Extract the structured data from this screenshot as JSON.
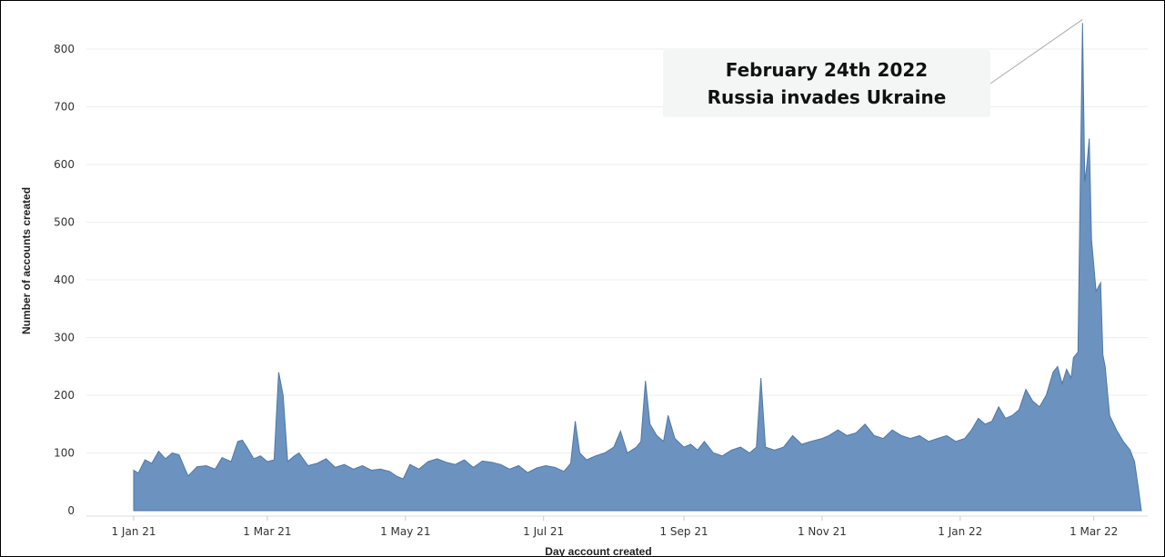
{
  "chart_data": {
    "type": "area",
    "title": "",
    "xlabel": "Day account created",
    "ylabel": "Number of accounts created",
    "x_range": [
      "2021-01-01",
      "2022-03-22"
    ],
    "ylim": [
      0,
      850
    ],
    "y_ticks": [
      0,
      100,
      200,
      300,
      400,
      500,
      600,
      700,
      800
    ],
    "x_ticks": [
      {
        "date": "2021-01-01",
        "label": "1 Jan 21"
      },
      {
        "date": "2021-03-01",
        "label": "1 Mar 21"
      },
      {
        "date": "2021-05-01",
        "label": "1 May 21"
      },
      {
        "date": "2021-07-01",
        "label": "1 Jul 21"
      },
      {
        "date": "2021-09-01",
        "label": "1 Sep 21"
      },
      {
        "date": "2021-11-01",
        "label": "1 Nov 21"
      },
      {
        "date": "2022-01-01",
        "label": "1 Jan 22"
      },
      {
        "date": "2022-03-01",
        "label": "1 Mar 22"
      }
    ],
    "grid": "horizontal",
    "color": "#6c93bf",
    "annotation": {
      "line1": "February 24th 2022",
      "line2": "Russia invades Ukraine",
      "date": "2022-02-24",
      "value": 845
    },
    "series": [
      {
        "points": [
          [
            "2021-01-01",
            70
          ],
          [
            "2021-01-03",
            65
          ],
          [
            "2021-01-06",
            88
          ],
          [
            "2021-01-09",
            82
          ],
          [
            "2021-01-12",
            103
          ],
          [
            "2021-01-15",
            90
          ],
          [
            "2021-01-18",
            100
          ],
          [
            "2021-01-21",
            97
          ],
          [
            "2021-01-25",
            60
          ],
          [
            "2021-01-29",
            76
          ],
          [
            "2021-02-02",
            78
          ],
          [
            "2021-02-06",
            72
          ],
          [
            "2021-02-09",
            92
          ],
          [
            "2021-02-13",
            85
          ],
          [
            "2021-02-16",
            120
          ],
          [
            "2021-02-18",
            122
          ],
          [
            "2021-02-20",
            110
          ],
          [
            "2021-02-23",
            90
          ],
          [
            "2021-02-26",
            95
          ],
          [
            "2021-03-01",
            85
          ],
          [
            "2021-03-04",
            88
          ],
          [
            "2021-03-06",
            240
          ],
          [
            "2021-03-08",
            200
          ],
          [
            "2021-03-10",
            85
          ],
          [
            "2021-03-13",
            95
          ],
          [
            "2021-03-15",
            100
          ],
          [
            "2021-03-19",
            78
          ],
          [
            "2021-03-23",
            82
          ],
          [
            "2021-03-27",
            90
          ],
          [
            "2021-03-31",
            75
          ],
          [
            "2021-04-04",
            80
          ],
          [
            "2021-04-08",
            72
          ],
          [
            "2021-04-12",
            78
          ],
          [
            "2021-04-16",
            70
          ],
          [
            "2021-04-20",
            72
          ],
          [
            "2021-04-24",
            68
          ],
          [
            "2021-04-27",
            60
          ],
          [
            "2021-04-30",
            55
          ],
          [
            "2021-05-03",
            80
          ],
          [
            "2021-05-07",
            72
          ],
          [
            "2021-05-11",
            85
          ],
          [
            "2021-05-15",
            90
          ],
          [
            "2021-05-19",
            84
          ],
          [
            "2021-05-23",
            80
          ],
          [
            "2021-05-27",
            88
          ],
          [
            "2021-05-31",
            75
          ],
          [
            "2021-06-04",
            86
          ],
          [
            "2021-06-08",
            84
          ],
          [
            "2021-06-12",
            80
          ],
          [
            "2021-06-16",
            72
          ],
          [
            "2021-06-20",
            78
          ],
          [
            "2021-06-24",
            66
          ],
          [
            "2021-06-28",
            74
          ],
          [
            "2021-07-02",
            78
          ],
          [
            "2021-07-06",
            75
          ],
          [
            "2021-07-10",
            68
          ],
          [
            "2021-07-13",
            82
          ],
          [
            "2021-07-15",
            155
          ],
          [
            "2021-07-17",
            100
          ],
          [
            "2021-07-20",
            88
          ],
          [
            "2021-07-24",
            95
          ],
          [
            "2021-07-28",
            100
          ],
          [
            "2021-08-01",
            110
          ],
          [
            "2021-08-04",
            138
          ],
          [
            "2021-08-07",
            100
          ],
          [
            "2021-08-11",
            110
          ],
          [
            "2021-08-13",
            120
          ],
          [
            "2021-08-15",
            225
          ],
          [
            "2021-08-17",
            150
          ],
          [
            "2021-08-20",
            130
          ],
          [
            "2021-08-23",
            120
          ],
          [
            "2021-08-25",
            165
          ],
          [
            "2021-08-28",
            125
          ],
          [
            "2021-09-01",
            110
          ],
          [
            "2021-09-04",
            115
          ],
          [
            "2021-09-07",
            105
          ],
          [
            "2021-09-10",
            120
          ],
          [
            "2021-09-14",
            100
          ],
          [
            "2021-09-18",
            95
          ],
          [
            "2021-09-22",
            105
          ],
          [
            "2021-09-26",
            110
          ],
          [
            "2021-09-30",
            100
          ],
          [
            "2021-10-03",
            110
          ],
          [
            "2021-10-05",
            230
          ],
          [
            "2021-10-07",
            110
          ],
          [
            "2021-10-11",
            105
          ],
          [
            "2021-10-15",
            110
          ],
          [
            "2021-10-19",
            130
          ],
          [
            "2021-10-23",
            115
          ],
          [
            "2021-10-27",
            120
          ],
          [
            "2021-11-01",
            125
          ],
          [
            "2021-11-04",
            130
          ],
          [
            "2021-11-08",
            140
          ],
          [
            "2021-11-12",
            130
          ],
          [
            "2021-11-16",
            135
          ],
          [
            "2021-11-20",
            150
          ],
          [
            "2021-11-24",
            130
          ],
          [
            "2021-11-28",
            125
          ],
          [
            "2021-12-02",
            140
          ],
          [
            "2021-12-06",
            130
          ],
          [
            "2021-12-10",
            125
          ],
          [
            "2021-12-14",
            130
          ],
          [
            "2021-12-18",
            120
          ],
          [
            "2021-12-22",
            125
          ],
          [
            "2021-12-26",
            130
          ],
          [
            "2021-12-30",
            120
          ],
          [
            "2022-01-03",
            125
          ],
          [
            "2022-01-06",
            140
          ],
          [
            "2022-01-09",
            160
          ],
          [
            "2022-01-12",
            150
          ],
          [
            "2022-01-15",
            155
          ],
          [
            "2022-01-18",
            180
          ],
          [
            "2022-01-21",
            160
          ],
          [
            "2022-01-24",
            165
          ],
          [
            "2022-01-27",
            175
          ],
          [
            "2022-01-30",
            210
          ],
          [
            "2022-02-02",
            190
          ],
          [
            "2022-02-05",
            180
          ],
          [
            "2022-02-08",
            200
          ],
          [
            "2022-02-11",
            240
          ],
          [
            "2022-02-13",
            250
          ],
          [
            "2022-02-15",
            220
          ],
          [
            "2022-02-17",
            245
          ],
          [
            "2022-02-19",
            230
          ],
          [
            "2022-02-20",
            265
          ],
          [
            "2022-02-22",
            275
          ],
          [
            "2022-02-24",
            845
          ],
          [
            "2022-02-25",
            570
          ],
          [
            "2022-02-26",
            600
          ],
          [
            "2022-02-27",
            645
          ],
          [
            "2022-02-28",
            470
          ],
          [
            "2022-03-02",
            380
          ],
          [
            "2022-03-04",
            395
          ],
          [
            "2022-03-05",
            270
          ],
          [
            "2022-03-06",
            250
          ],
          [
            "2022-03-08",
            165
          ],
          [
            "2022-03-11",
            140
          ],
          [
            "2022-03-14",
            120
          ],
          [
            "2022-03-17",
            105
          ],
          [
            "2022-03-19",
            85
          ],
          [
            "2022-03-21",
            30
          ],
          [
            "2022-03-22",
            0
          ]
        ]
      }
    ]
  }
}
